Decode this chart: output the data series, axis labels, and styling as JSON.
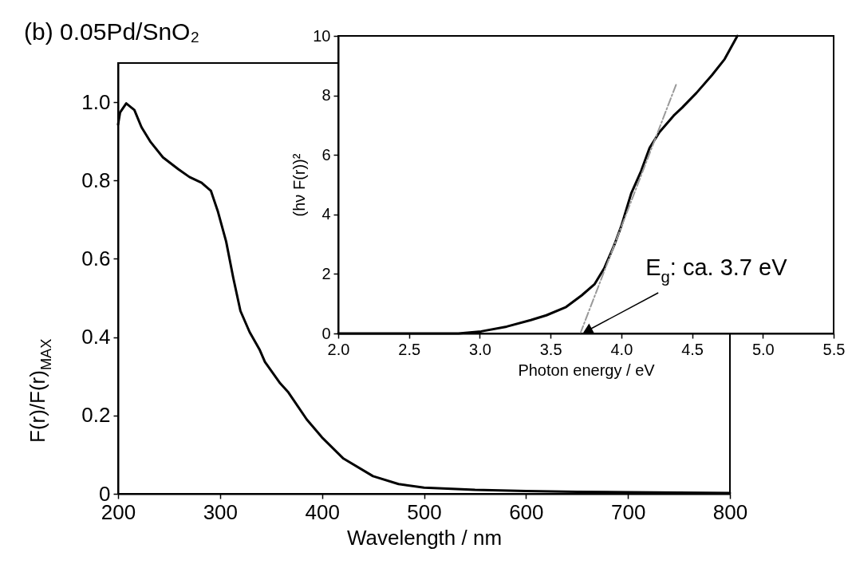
{
  "chart_data": [
    {
      "type": "line",
      "title": "(b) 0.05Pd/SnO₂",
      "xlabel": "Wavelength / nm",
      "ylabel": "F(r)/F(r)$_{MAX}$",
      "x": [
        200,
        202,
        208,
        216,
        223,
        232,
        244,
        259,
        270,
        282,
        291,
        298,
        306,
        313,
        320,
        329,
        339,
        344,
        359,
        367,
        385,
        400,
        421,
        450,
        475,
        500,
        550,
        600,
        650,
        700,
        750,
        800
      ],
      "series": [
        {
          "color": "#000000",
          "values": [
            0.943,
            0.974,
            0.997,
            0.98,
            0.936,
            0.898,
            0.859,
            0.829,
            0.809,
            0.794,
            0.774,
            0.72,
            0.644,
            0.551,
            0.467,
            0.413,
            0.367,
            0.337,
            0.282,
            0.259,
            0.19,
            0.144,
            0.09,
            0.045,
            0.025,
            0.016,
            0.01,
            0.007,
            0.005,
            0.004,
            0.003,
            0.002
          ]
        }
      ],
      "xlim": [
        200,
        800
      ],
      "xticks": [
        200,
        300,
        400,
        500,
        600,
        700,
        800
      ],
      "ylim": [
        0,
        1.1
      ],
      "yticks": [
        0,
        0.2,
        0.4,
        0.6,
        0.8,
        {
          "value": 1,
          "label": "1.0"
        }
      ],
      "grid": false,
      "legend": false,
      "marker": "none",
      "line_style": "solid"
    },
    {
      "type": "line",
      "xlabel": "Photon energy / eV",
      "ylabel": "(hν F(r))²",
      "series": [
        {
          "color": "#000000",
          "x": [
            2.0,
            2.5,
            2.85,
            3.01,
            3.19,
            3.36,
            3.47,
            3.61,
            3.72,
            3.81,
            3.88,
            3.95,
            4.0,
            4.07,
            4.14,
            4.2,
            4.27,
            4.37,
            4.43,
            4.53,
            4.64,
            4.73,
            4.82
          ],
          "values": [
            0,
            0,
            0,
            0.07,
            0.23,
            0.45,
            0.61,
            0.89,
            1.28,
            1.65,
            2.2,
            2.97,
            3.61,
            4.71,
            5.46,
            6.24,
            6.77,
            7.32,
            7.59,
            8.08,
            8.68,
            9.22,
            10.0
          ]
        },
        {
          "color": "#999999",
          "x": [
            3.71,
            4.39
          ],
          "values": [
            0,
            8.4
          ],
          "line_style": "dashed"
        }
      ],
      "annotations": [
        {
          "text": "E$_{g}$: ca. 3.7 eV",
          "x": 3.72,
          "y": 0
        }
      ],
      "xlim": [
        2.0,
        5.5
      ],
      "xticks": [
        {
          "value": 2,
          "label": "2.0"
        },
        2.5,
        {
          "value": 3,
          "label": "3.0"
        },
        3.5,
        {
          "value": 4,
          "label": "4.0"
        },
        4.5,
        {
          "value": 5,
          "label": "5.0"
        },
        5.5
      ],
      "ylim": [
        0,
        10
      ],
      "yticks": [
        0,
        2,
        4,
        6,
        8,
        10
      ],
      "grid": false,
      "legend": false,
      "marker": "none",
      "line_style": "solid"
    }
  ]
}
